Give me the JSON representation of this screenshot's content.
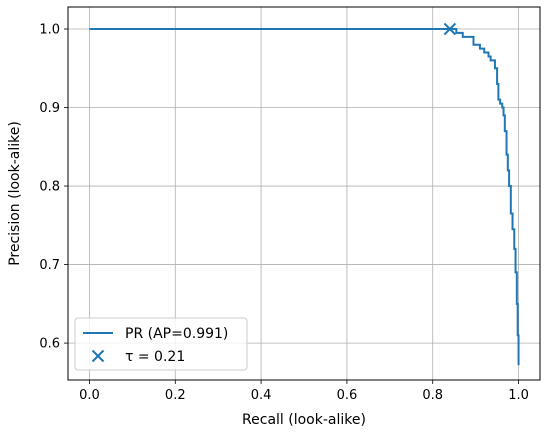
{
  "chart_data": {
    "type": "line",
    "xlabel": "Recall (look-alike)",
    "ylabel": "Precision (look-alike)",
    "xlim": [
      -0.05,
      1.05
    ],
    "ylim": [
      0.553,
      1.028
    ],
    "x_ticks": [
      0.0,
      0.2,
      0.4,
      0.6,
      0.8,
      1.0
    ],
    "x_tick_labels": [
      "0.0",
      "0.2",
      "0.4",
      "0.6",
      "0.8",
      "1.0"
    ],
    "y_ticks": [
      0.6,
      0.7,
      0.8,
      0.9,
      1.0
    ],
    "y_tick_labels": [
      "0.6",
      "0.7",
      "0.8",
      "0.9",
      "1.0"
    ],
    "grid": true,
    "legend_position": "lower-left",
    "color": "#1f77b4",
    "series": [
      {
        "name": "PR (AP=0.991)",
        "kind": "step-line",
        "points": [
          [
            0.0,
            1.0
          ],
          [
            0.84,
            1.0
          ],
          [
            0.855,
            1.0
          ],
          [
            0.855,
            0.995
          ],
          [
            0.87,
            0.995
          ],
          [
            0.87,
            0.99
          ],
          [
            0.895,
            0.99
          ],
          [
            0.895,
            0.98
          ],
          [
            0.91,
            0.98
          ],
          [
            0.91,
            0.975
          ],
          [
            0.92,
            0.975
          ],
          [
            0.92,
            0.97
          ],
          [
            0.93,
            0.97
          ],
          [
            0.93,
            0.965
          ],
          [
            0.935,
            0.965
          ],
          [
            0.935,
            0.96
          ],
          [
            0.945,
            0.96
          ],
          [
            0.945,
            0.95
          ],
          [
            0.95,
            0.95
          ],
          [
            0.95,
            0.93
          ],
          [
            0.953,
            0.93
          ],
          [
            0.953,
            0.91
          ],
          [
            0.957,
            0.91
          ],
          [
            0.957,
            0.905
          ],
          [
            0.962,
            0.905
          ],
          [
            0.962,
            0.9
          ],
          [
            0.965,
            0.9
          ],
          [
            0.965,
            0.89
          ],
          [
            0.968,
            0.89
          ],
          [
            0.968,
            0.87
          ],
          [
            0.972,
            0.87
          ],
          [
            0.972,
            0.84
          ],
          [
            0.975,
            0.84
          ],
          [
            0.975,
            0.82
          ],
          [
            0.978,
            0.82
          ],
          [
            0.978,
            0.8
          ],
          [
            0.982,
            0.8
          ],
          [
            0.982,
            0.765
          ],
          [
            0.986,
            0.765
          ],
          [
            0.986,
            0.745
          ],
          [
            0.99,
            0.745
          ],
          [
            0.99,
            0.72
          ],
          [
            0.993,
            0.72
          ],
          [
            0.993,
            0.69
          ],
          [
            0.996,
            0.69
          ],
          [
            0.996,
            0.65
          ],
          [
            0.998,
            0.65
          ],
          [
            0.998,
            0.61
          ],
          [
            1.0,
            0.61
          ],
          [
            1.0,
            0.572
          ]
        ]
      },
      {
        "name": "τ = 0.21",
        "kind": "marker-x",
        "points": [
          [
            0.84,
            1.0
          ]
        ]
      }
    ]
  }
}
